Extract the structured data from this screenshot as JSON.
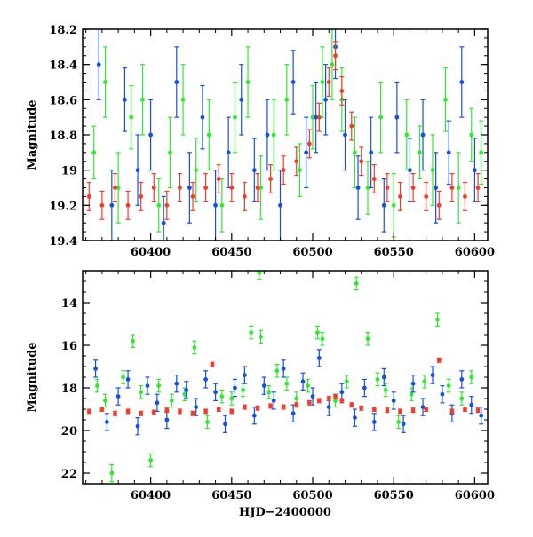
{
  "colors": {
    "green": "#33e833",
    "blue": "#1450e6",
    "red": "#f03c28",
    "axis": "#000000",
    "background": "#ffffff"
  },
  "chart_data": [
    {
      "type": "scatter",
      "title": "",
      "xlabel": "",
      "ylabel": "Magnitude",
      "xlim": [
        60358,
        60608
      ],
      "ylim": [
        18.2,
        19.4
      ],
      "y_inverted": true,
      "error_bars": true,
      "grid": false,
      "legend": "none",
      "xticks": [
        60400,
        60450,
        60500,
        60550,
        60600
      ],
      "xtick_labels": [
        "60400",
        "60450",
        "60500",
        "60550",
        "60600"
      ],
      "yticks": [
        18.2,
        18.4,
        18.6,
        18.8,
        19,
        19.2,
        19.4
      ],
      "ytick_labels": [
        "18.2",
        "18.4",
        "18.6",
        "18.8",
        "19",
        "19.2",
        "19.4"
      ],
      "series": [
        {
          "color_key": "green",
          "x": [
            60365,
            60372,
            60380,
            60388,
            60395,
            60405,
            60412,
            60420,
            60428,
            60436,
            60444,
            60452,
            60460,
            60468,
            60476,
            60484,
            60492,
            60500,
            60506,
            60512,
            60518,
            60526,
            60534,
            60542,
            60550,
            60558,
            60566,
            60574,
            60582,
            60590,
            60598,
            60604
          ],
          "y": [
            18.9,
            18.5,
            19.1,
            18.7,
            18.6,
            19.2,
            18.9,
            18.6,
            19.0,
            18.8,
            19.2,
            18.7,
            18.5,
            19.1,
            18.8,
            18.6,
            19.0,
            18.7,
            18.5,
            18.4,
            18.6,
            18.9,
            19.1,
            18.7,
            19.2,
            18.8,
            18.9,
            19.0,
            18.6,
            19.1,
            18.8,
            18.9
          ],
          "err": [
            0.15,
            0.2,
            0.2,
            0.18,
            0.2,
            0.15,
            0.2,
            0.2,
            0.18,
            0.2,
            0.15,
            0.2,
            0.2,
            0.18,
            0.2,
            0.2,
            0.15,
            0.18,
            0.2,
            0.2,
            0.18,
            0.2,
            0.15,
            0.2,
            0.18,
            0.2,
            0.15,
            0.2,
            0.18,
            0.2,
            0.15,
            0.18
          ]
        },
        {
          "color_key": "blue",
          "x": [
            60368,
            60376,
            60384,
            60392,
            60400,
            60408,
            60416,
            60424,
            60432,
            60440,
            60448,
            60456,
            60464,
            60472,
            60480,
            60488,
            60496,
            60502,
            60508,
            60514,
            60520,
            60528,
            60536,
            60544,
            60552,
            60560,
            60568,
            60576,
            60584,
            60592,
            60600
          ],
          "y": [
            18.4,
            19.2,
            18.6,
            19.0,
            18.8,
            19.3,
            18.5,
            19.1,
            18.7,
            19.2,
            18.9,
            18.6,
            19.0,
            18.8,
            19.2,
            18.5,
            18.9,
            18.7,
            18.6,
            18.3,
            18.8,
            19.1,
            18.9,
            19.2,
            18.7,
            19.0,
            18.8,
            19.1,
            18.9,
            18.5,
            19.0
          ],
          "err": [
            0.2,
            0.2,
            0.18,
            0.2,
            0.2,
            0.15,
            0.2,
            0.2,
            0.18,
            0.2,
            0.2,
            0.2,
            0.18,
            0.2,
            0.2,
            0.18,
            0.2,
            0.2,
            0.2,
            0.18,
            0.2,
            0.18,
            0.2,
            0.15,
            0.2,
            0.18,
            0.2,
            0.2,
            0.18,
            0.2,
            0.18
          ]
        },
        {
          "color_key": "red",
          "x": [
            60362,
            60370,
            60378,
            60386,
            60394,
            60402,
            60410,
            60418,
            60426,
            60434,
            60442,
            60450,
            60458,
            60466,
            60474,
            60482,
            60490,
            60498,
            60504,
            60510,
            60514,
            60518,
            60524,
            60530,
            60538,
            60546,
            60554,
            60562,
            60570,
            60578,
            60586,
            60594,
            60602
          ],
          "y": [
            19.15,
            19.2,
            19.1,
            19.2,
            19.15,
            19.1,
            19.2,
            19.1,
            19.15,
            19.1,
            19.05,
            19.1,
            19.15,
            19.1,
            19.05,
            19.0,
            18.95,
            18.85,
            18.7,
            18.5,
            18.35,
            18.55,
            18.75,
            18.95,
            19.05,
            19.1,
            19.15,
            19.1,
            19.15,
            19.2,
            19.1,
            19.15,
            19.1
          ],
          "err": [
            0.08,
            0.08,
            0.08,
            0.08,
            0.08,
            0.08,
            0.08,
            0.08,
            0.08,
            0.08,
            0.08,
            0.08,
            0.08,
            0.08,
            0.08,
            0.08,
            0.08,
            0.08,
            0.08,
            0.08,
            0.08,
            0.08,
            0.08,
            0.08,
            0.08,
            0.08,
            0.08,
            0.08,
            0.08,
            0.08,
            0.08,
            0.08,
            0.08
          ]
        }
      ]
    },
    {
      "type": "scatter",
      "title": "",
      "xlabel": "HJD−2400000",
      "ylabel": "Magnitude",
      "xlim": [
        60358,
        60608
      ],
      "ylim": [
        12.5,
        22.5
      ],
      "y_inverted": true,
      "error_bars": true,
      "grid": false,
      "legend": "none",
      "xticks": [
        60400,
        60450,
        60500,
        60550,
        60600
      ],
      "xtick_labels": [
        "60400",
        "60450",
        "60500",
        "60550",
        "60600"
      ],
      "yticks": [
        14,
        16,
        18,
        20,
        22
      ],
      "ytick_labels": [
        "14",
        "16",
        "18",
        "20",
        "22"
      ],
      "series": [
        {
          "color_key": "green",
          "x": [
            60367,
            60372,
            60376,
            60383,
            60389,
            60394,
            60400,
            60405,
            60413,
            60421,
            60427,
            60435,
            60444,
            60450,
            60457,
            60462,
            60467,
            60468,
            60473,
            60478,
            60484,
            60490,
            60497,
            60503,
            60506,
            60514,
            60521,
            60527,
            60534,
            60540,
            60545,
            60553,
            60561,
            60569,
            60577,
            60584,
            60592,
            60598
          ],
          "y": [
            17.9,
            18.6,
            22.0,
            17.5,
            15.8,
            18.2,
            21.4,
            17.9,
            18.6,
            18.3,
            16.1,
            19.6,
            18.4,
            18.5,
            18.1,
            15.4,
            12.6,
            15.6,
            18.2,
            17.2,
            17.8,
            18.5,
            17.9,
            15.4,
            15.7,
            18.6,
            17.7,
            13.1,
            15.7,
            17.6,
            18.1,
            19.6,
            18.3,
            17.7,
            14.8,
            17.9,
            18.5,
            17.5
          ],
          "err": [
            0.3,
            0.3,
            0.4,
            0.3,
            0.3,
            0.3,
            0.3,
            0.3,
            0.3,
            0.3,
            0.3,
            0.3,
            0.3,
            0.3,
            0.3,
            0.3,
            0.3,
            0.3,
            0.3,
            0.3,
            0.3,
            0.3,
            0.3,
            0.3,
            0.3,
            0.3,
            0.3,
            0.3,
            0.3,
            0.3,
            0.3,
            0.3,
            0.3,
            0.3,
            0.3,
            0.3,
            0.3,
            0.3
          ]
        },
        {
          "color_key": "blue",
          "x": [
            60366,
            60373,
            60380,
            60386,
            60392,
            60398,
            60404,
            60410,
            60416,
            60422,
            60428,
            60434,
            60440,
            60446,
            60452,
            60458,
            60464,
            60470,
            60476,
            60482,
            60488,
            60494,
            60500,
            60504,
            60510,
            60518,
            60526,
            60532,
            60538,
            60544,
            60550,
            60556,
            60562,
            60568,
            60574,
            60580,
            60586,
            60592,
            60598,
            60604
          ],
          "y": [
            17.1,
            19.6,
            18.4,
            17.6,
            19.8,
            17.9,
            18.7,
            19.5,
            17.8,
            18.1,
            18.9,
            17.6,
            18.2,
            19.7,
            18.0,
            17.4,
            19.3,
            17.9,
            18.6,
            17.1,
            19.2,
            17.7,
            18.4,
            16.6,
            18.9,
            18.2,
            19.4,
            18.0,
            19.6,
            17.5,
            18.6,
            19.7,
            17.8,
            18.9,
            17.4,
            18.3,
            19.2,
            17.6,
            18.8,
            19.3
          ],
          "err": [
            0.4,
            0.4,
            0.4,
            0.4,
            0.4,
            0.4,
            0.4,
            0.4,
            0.4,
            0.4,
            0.4,
            0.4,
            0.4,
            0.4,
            0.4,
            0.4,
            0.4,
            0.4,
            0.4,
            0.4,
            0.4,
            0.4,
            0.4,
            0.4,
            0.4,
            0.4,
            0.4,
            0.4,
            0.4,
            0.4,
            0.4,
            0.4,
            0.4,
            0.4,
            0.4,
            0.4,
            0.4,
            0.4,
            0.4,
            0.4
          ]
        },
        {
          "color_key": "red",
          "x": [
            60362,
            60370,
            60378,
            60386,
            60394,
            60402,
            60410,
            60418,
            60426,
            60434,
            60438,
            60442,
            60450,
            60458,
            60466,
            60474,
            60482,
            60490,
            60498,
            60504,
            60510,
            60514,
            60518,
            60524,
            60530,
            60538,
            60546,
            60554,
            60562,
            60570,
            60578,
            60586,
            60594,
            60602
          ],
          "y": [
            19.1,
            19.0,
            19.2,
            19.1,
            19.2,
            19.15,
            19.05,
            19.1,
            19.2,
            19.1,
            16.9,
            19.0,
            19.1,
            18.9,
            18.95,
            18.85,
            18.9,
            18.8,
            18.7,
            18.6,
            18.5,
            18.4,
            18.6,
            18.8,
            18.95,
            19.0,
            19.05,
            19.1,
            19.05,
            19.0,
            16.7,
            19.1,
            19.0,
            19.05
          ],
          "err": [
            0.1,
            0.1,
            0.1,
            0.1,
            0.1,
            0.1,
            0.1,
            0.1,
            0.1,
            0.1,
            0.1,
            0.1,
            0.1,
            0.1,
            0.1,
            0.1,
            0.1,
            0.1,
            0.1,
            0.1,
            0.1,
            0.1,
            0.1,
            0.1,
            0.1,
            0.1,
            0.1,
            0.1,
            0.1,
            0.1,
            0.1,
            0.1,
            0.1,
            0.1
          ]
        }
      ]
    }
  ]
}
